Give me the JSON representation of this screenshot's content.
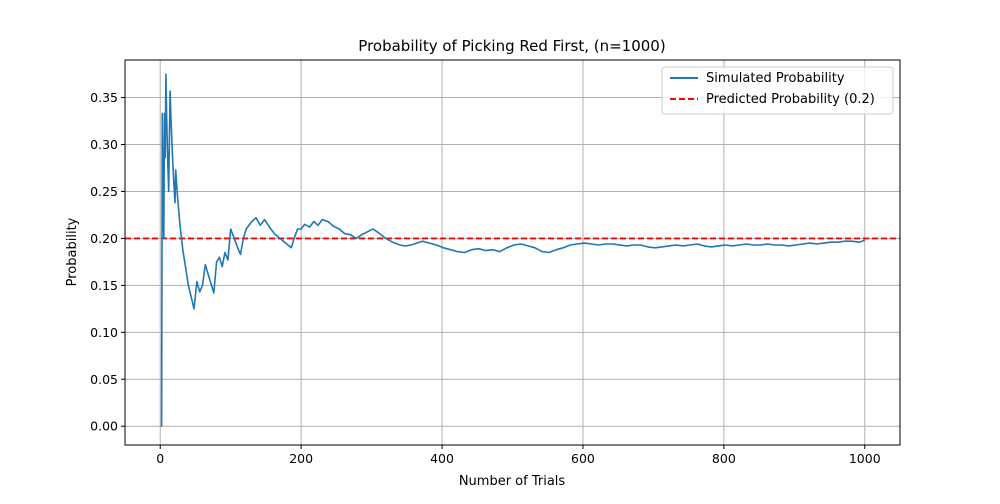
{
  "chart_data": {
    "type": "line",
    "title": "Probability of Picking Red First, (n=1000)",
    "xlabel": "Number of Trials",
    "ylabel": "Probability",
    "xlim": [
      -50,
      1050
    ],
    "ylim": [
      -0.02,
      0.39
    ],
    "x_ticks": [
      0,
      200,
      400,
      600,
      800,
      1000
    ],
    "x_tick_labels": [
      "0",
      "200",
      "400",
      "600",
      "800",
      "1000"
    ],
    "y_ticks": [
      0.0,
      0.05,
      0.1,
      0.15,
      0.2,
      0.25,
      0.3,
      0.35
    ],
    "y_tick_labels": [
      "0.00",
      "0.05",
      "0.10",
      "0.15",
      "0.20",
      "0.25",
      "0.30",
      "0.35"
    ],
    "grid": true,
    "legend_position": "top-right",
    "series": [
      {
        "name": "Simulated Probability",
        "style": "solid",
        "color": "#1f77b4",
        "points": [
          [
            1,
            0.0
          ],
          [
            2,
            0.0
          ],
          [
            3,
            0.333
          ],
          [
            4,
            0.25
          ],
          [
            5,
            0.2
          ],
          [
            6,
            0.333
          ],
          [
            7,
            0.286
          ],
          [
            8,
            0.375
          ],
          [
            9,
            0.333
          ],
          [
            10,
            0.3
          ],
          [
            11,
            0.273
          ],
          [
            12,
            0.25
          ],
          [
            13,
            0.308
          ],
          [
            14,
            0.357
          ],
          [
            15,
            0.333
          ],
          [
            17,
            0.294
          ],
          [
            19,
            0.263
          ],
          [
            21,
            0.238
          ],
          [
            22,
            0.273
          ],
          [
            24,
            0.25
          ],
          [
            28,
            0.214
          ],
          [
            32,
            0.188
          ],
          [
            40,
            0.15
          ],
          [
            48,
            0.125
          ],
          [
            52,
            0.154
          ],
          [
            56,
            0.143
          ],
          [
            60,
            0.15
          ],
          [
            64,
            0.172
          ],
          [
            70,
            0.157
          ],
          [
            76,
            0.142
          ],
          [
            80,
            0.175
          ],
          [
            84,
            0.18
          ],
          [
            88,
            0.17
          ],
          [
            92,
            0.185
          ],
          [
            96,
            0.177
          ],
          [
            100,
            0.21
          ],
          [
            105,
            0.2
          ],
          [
            110,
            0.19
          ],
          [
            114,
            0.183
          ],
          [
            118,
            0.2
          ],
          [
            122,
            0.21
          ],
          [
            130,
            0.218
          ],
          [
            136,
            0.222
          ],
          [
            142,
            0.214
          ],
          [
            148,
            0.22
          ],
          [
            155,
            0.212
          ],
          [
            162,
            0.205
          ],
          [
            170,
            0.2
          ],
          [
            178,
            0.195
          ],
          [
            186,
            0.19
          ],
          [
            190,
            0.2
          ],
          [
            195,
            0.21
          ],
          [
            200,
            0.21
          ],
          [
            205,
            0.215
          ],
          [
            212,
            0.212
          ],
          [
            218,
            0.218
          ],
          [
            224,
            0.214
          ],
          [
            230,
            0.22
          ],
          [
            238,
            0.218
          ],
          [
            246,
            0.213
          ],
          [
            254,
            0.21
          ],
          [
            262,
            0.205
          ],
          [
            270,
            0.204
          ],
          [
            278,
            0.2
          ],
          [
            286,
            0.204
          ],
          [
            294,
            0.207
          ],
          [
            302,
            0.21
          ],
          [
            310,
            0.206
          ],
          [
            320,
            0.2
          ],
          [
            330,
            0.196
          ],
          [
            340,
            0.193
          ],
          [
            348,
            0.192
          ],
          [
            356,
            0.193
          ],
          [
            364,
            0.195
          ],
          [
            372,
            0.197
          ],
          [
            382,
            0.195
          ],
          [
            392,
            0.193
          ],
          [
            402,
            0.19
          ],
          [
            412,
            0.188
          ],
          [
            422,
            0.186
          ],
          [
            432,
            0.185
          ],
          [
            442,
            0.188
          ],
          [
            452,
            0.189
          ],
          [
            462,
            0.187
          ],
          [
            472,
            0.188
          ],
          [
            482,
            0.186
          ],
          [
            492,
            0.19
          ],
          [
            502,
            0.193
          ],
          [
            512,
            0.194
          ],
          [
            522,
            0.192
          ],
          [
            532,
            0.19
          ],
          [
            542,
            0.186
          ],
          [
            552,
            0.185
          ],
          [
            562,
            0.188
          ],
          [
            572,
            0.19
          ],
          [
            582,
            0.193
          ],
          [
            592,
            0.194
          ],
          [
            602,
            0.195
          ],
          [
            612,
            0.194
          ],
          [
            622,
            0.193
          ],
          [
            632,
            0.194
          ],
          [
            642,
            0.194
          ],
          [
            652,
            0.193
          ],
          [
            662,
            0.192
          ],
          [
            672,
            0.193
          ],
          [
            682,
            0.193
          ],
          [
            692,
            0.191
          ],
          [
            702,
            0.19
          ],
          [
            712,
            0.191
          ],
          [
            722,
            0.192
          ],
          [
            732,
            0.193
          ],
          [
            742,
            0.192
          ],
          [
            752,
            0.193
          ],
          [
            762,
            0.194
          ],
          [
            772,
            0.192
          ],
          [
            782,
            0.191
          ],
          [
            792,
            0.192
          ],
          [
            802,
            0.193
          ],
          [
            812,
            0.192
          ],
          [
            822,
            0.193
          ],
          [
            832,
            0.194
          ],
          [
            842,
            0.193
          ],
          [
            852,
            0.193
          ],
          [
            862,
            0.194
          ],
          [
            872,
            0.193
          ],
          [
            882,
            0.193
          ],
          [
            892,
            0.192
          ],
          [
            902,
            0.193
          ],
          [
            912,
            0.194
          ],
          [
            922,
            0.195
          ],
          [
            932,
            0.194
          ],
          [
            942,
            0.195
          ],
          [
            952,
            0.196
          ],
          [
            962,
            0.196
          ],
          [
            972,
            0.197
          ],
          [
            982,
            0.197
          ],
          [
            992,
            0.196
          ],
          [
            1000,
            0.198
          ]
        ]
      },
      {
        "name": "Predicted Probability (0.2)",
        "style": "dashed",
        "color": "#ff0000",
        "constant_y": 0.2
      }
    ]
  }
}
